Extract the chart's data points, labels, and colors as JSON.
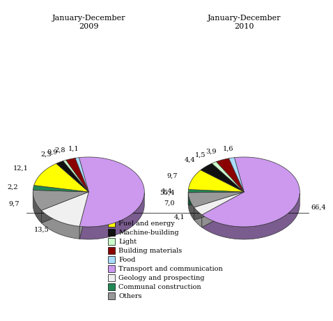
{
  "title_2009": "January-December\n2009",
  "title_2010": "January-December\n2010",
  "categories": [
    "Fuel and energy",
    "Machine-building",
    "Light",
    "Building materials",
    "Food",
    "Transport and communication",
    "Geology and prospecting",
    "Communal construction",
    "Others"
  ],
  "colors": [
    "#FFff00",
    "#111111",
    "#ccffcc",
    "#8B0000",
    "#aaddff",
    "#cc99ee",
    "#f0f0f0",
    "#228855",
    "#999999"
  ],
  "edge_color": "#333333",
  "values_2009": [
    12.1,
    2.3,
    0.9,
    2.8,
    1.1,
    55.4,
    13.5,
    2.2,
    9.7
  ],
  "values_2010": [
    9.7,
    4.4,
    1.5,
    3.9,
    1.6,
    66.4,
    4.1,
    1.4,
    7.0
  ],
  "legend_colors": [
    "#FFff00",
    "#111111",
    "#ccffcc",
    "#8B0000",
    "#aaddff",
    "#cc99ee",
    "#f0f0f0",
    "#228855",
    "#999999"
  ],
  "legend_labels": [
    "Fuel and energy",
    "Machine-building",
    "Light",
    "Building materials",
    "Food",
    "Transport and communication",
    "Geology and prospecting",
    "Communal construction",
    "Others"
  ],
  "bg_color": "#ffffff"
}
